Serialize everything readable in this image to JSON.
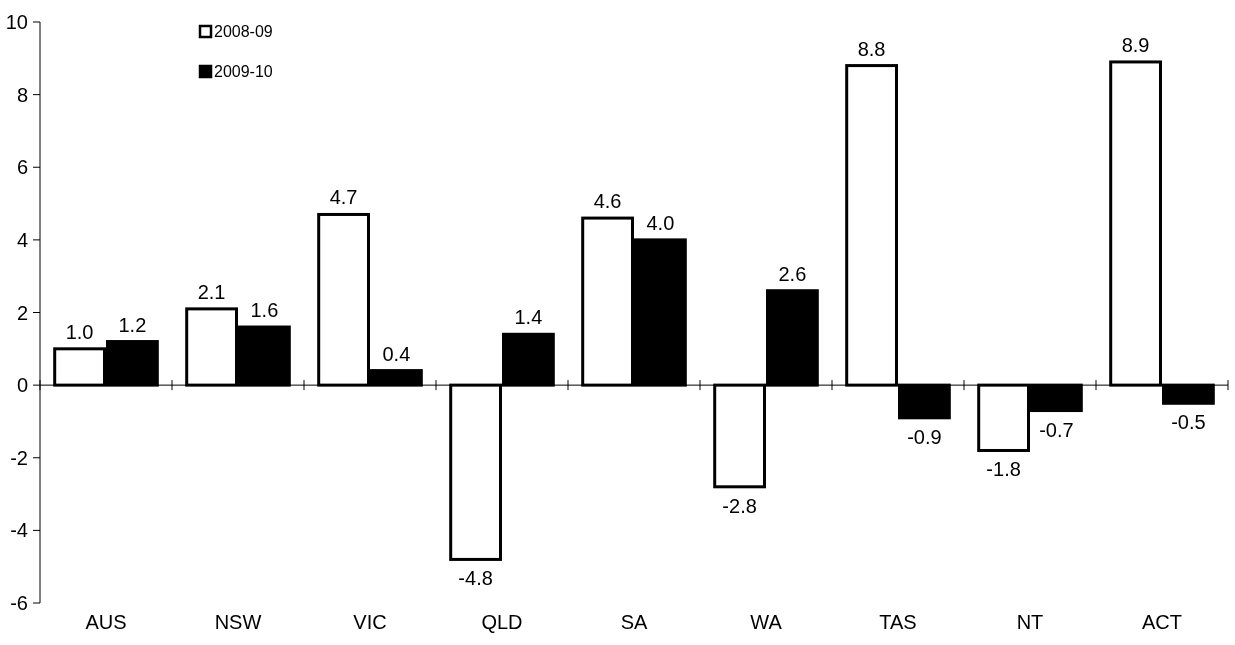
{
  "chart_data": {
    "type": "bar",
    "categories": [
      "AUS",
      "NSW",
      "VIC",
      "QLD",
      "SA",
      "WA",
      "TAS",
      "NT",
      "ACT"
    ],
    "series": [
      {
        "name": "2008-09",
        "color": "#ffffff",
        "values": [
          1.0,
          2.1,
          4.7,
          -4.8,
          4.6,
          -2.8,
          8.8,
          -1.8,
          8.9
        ],
        "value_labels": [
          "1.0",
          "2.1",
          "4.7",
          "-4.8",
          "4.6",
          "-2.8",
          "8.8",
          "-1.8",
          "8.9"
        ]
      },
      {
        "name": "2009-10",
        "color": "#000000",
        "values": [
          1.2,
          1.6,
          0.4,
          1.4,
          4.0,
          2.6,
          -0.9,
          -0.7,
          -0.5
        ],
        "value_labels": [
          "1.2",
          "1.6",
          "0.4",
          "1.4",
          "4.0",
          "2.6",
          "-0.9",
          "-0.7",
          "-0.5"
        ]
      }
    ],
    "ylim": [
      -6,
      10
    ],
    "yticks": [
      -6,
      -4,
      -2,
      0,
      2,
      4,
      6,
      8,
      10
    ],
    "legend": "top left"
  }
}
